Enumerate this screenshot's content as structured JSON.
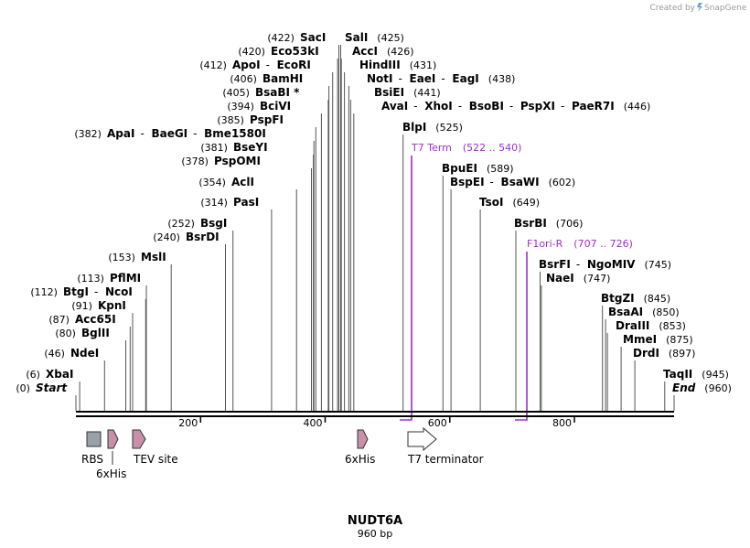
{
  "header": {
    "credit": "Created by",
    "brand": "SnapGene"
  },
  "title": {
    "name": "NUDT6A",
    "length": "960 bp"
  },
  "colors": {
    "primer": "#9b30c8",
    "feature_fill": "#c890a8",
    "rbs_fill": "#9aa0a8"
  },
  "sequence": {
    "total_bp": 960,
    "ticks": [
      "200",
      "400",
      "600",
      "800"
    ]
  },
  "sites": [
    {
      "pos": "(422)",
      "names": [
        "SacI"
      ]
    },
    {
      "pos": "(425)",
      "names": [
        "SalI"
      ]
    },
    {
      "pos": "(420)",
      "names": [
        "Eco53kI"
      ]
    },
    {
      "pos": "(426)",
      "names": [
        "AccI"
      ]
    },
    {
      "pos": "(412)",
      "names": [
        "ApoI",
        "EcoRI"
      ]
    },
    {
      "pos": "(431)",
      "names": [
        "HindIII"
      ]
    },
    {
      "pos": "(406)",
      "names": [
        "BamHI"
      ]
    },
    {
      "pos": "(438)",
      "names": [
        "NotI",
        "EaeI",
        "EagI"
      ]
    },
    {
      "pos": "(405)",
      "names": [
        "BsaBI *"
      ]
    },
    {
      "pos": "(441)",
      "names": [
        "BsiEI"
      ]
    },
    {
      "pos": "(394)",
      "names": [
        "BciVI"
      ]
    },
    {
      "pos": "(446)",
      "names": [
        "AvaI",
        "XhoI",
        "BsoBI",
        "PspXI",
        "PaeR7I"
      ]
    },
    {
      "pos": "(385)",
      "names": [
        "PspFI"
      ]
    },
    {
      "pos": "(525)",
      "names": [
        "BlpI"
      ]
    },
    {
      "pos": "(382)",
      "names": [
        "ApaI",
        "BaeGI",
        "Bme1580I"
      ]
    },
    {
      "pos": "(381)",
      "names": [
        "BseYI"
      ]
    },
    {
      "pos": "(378)",
      "names": [
        "PspOMI"
      ]
    },
    {
      "pos": "(589)",
      "names": [
        "BpuEI"
      ]
    },
    {
      "pos": "(354)",
      "names": [
        "AclI"
      ]
    },
    {
      "pos": "(602)",
      "names": [
        "BspEI",
        "BsaWI"
      ]
    },
    {
      "pos": "(314)",
      "names": [
        "PasI"
      ]
    },
    {
      "pos": "(649)",
      "names": [
        "TsoI"
      ]
    },
    {
      "pos": "(252)",
      "names": [
        "BsgI"
      ]
    },
    {
      "pos": "(706)",
      "names": [
        "BsrBI"
      ]
    },
    {
      "pos": "(240)",
      "names": [
        "BsrDI"
      ]
    },
    {
      "pos": "(153)",
      "names": [
        "MslI"
      ]
    },
    {
      "pos": "(745)",
      "names": [
        "BsrFI",
        "NgoMIV"
      ]
    },
    {
      "pos": "(113)",
      "names": [
        "PflMI"
      ]
    },
    {
      "pos": "(747)",
      "names": [
        "NaeI"
      ]
    },
    {
      "pos": "(112)",
      "names": [
        "BtgI",
        "NcoI"
      ]
    },
    {
      "pos": "(91)",
      "names": [
        "KpnI"
      ]
    },
    {
      "pos": "(845)",
      "names": [
        "BtgZI"
      ]
    },
    {
      "pos": "(87)",
      "names": [
        "Acc65I"
      ]
    },
    {
      "pos": "(850)",
      "names": [
        "BsaAI"
      ]
    },
    {
      "pos": "(80)",
      "names": [
        "BglII"
      ]
    },
    {
      "pos": "(853)",
      "names": [
        "DraIII"
      ]
    },
    {
      "pos": "(875)",
      "names": [
        "MmeI"
      ]
    },
    {
      "pos": "(46)",
      "names": [
        "NdeI"
      ]
    },
    {
      "pos": "(897)",
      "names": [
        "DrdI"
      ]
    },
    {
      "pos": "(6)",
      "names": [
        "XbaI"
      ]
    },
    {
      "pos": "(945)",
      "names": [
        "TaqII"
      ]
    },
    {
      "pos": "(0)",
      "names": [
        "Start"
      ]
    },
    {
      "pos": "(960)",
      "names": [
        "End"
      ]
    }
  ],
  "primers": [
    {
      "name": "T7 Term",
      "range": "(522 .. 540)"
    },
    {
      "name": "F1ori-R",
      "range": "(707 .. 726)"
    }
  ],
  "features": [
    {
      "label": "RBS"
    },
    {
      "label": "6xHis"
    },
    {
      "label": "TEV site"
    },
    {
      "label": "6xHis"
    },
    {
      "label": "T7 terminator"
    }
  ]
}
